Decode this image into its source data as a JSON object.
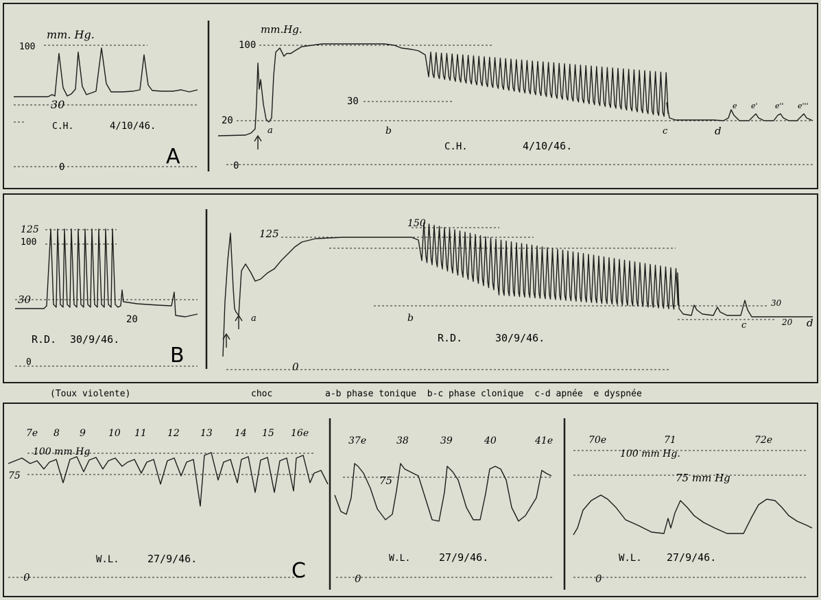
{
  "chart_data": [
    {
      "type": "line",
      "panel": "A",
      "subpanel": "left",
      "unit_label": "mm. Hg.",
      "ref_levels": [
        100,
        30
      ],
      "ref_labels": [
        "100",
        "30",
        "0"
      ],
      "caption": "C.H.",
      "date": "4/10/46.",
      "panel_letter": "A",
      "series": [
        {
          "x": [
            0,
            1,
            2,
            3,
            4,
            5,
            6,
            7,
            8
          ],
          "values": [
            30,
            30,
            85,
            30,
            85,
            30,
            85,
            30,
            30
          ]
        }
      ]
    },
    {
      "type": "line",
      "panel": "A",
      "subpanel": "right",
      "unit_label": "mm.Hg.",
      "ref_levels": [
        100,
        30,
        20
      ],
      "ref_labels": [
        "100",
        "30",
        "20",
        "0"
      ],
      "point_labels": [
        "a",
        "b",
        "c",
        "d",
        "e",
        "e'",
        "e''",
        "e'''"
      ],
      "caption": "C.H.",
      "date": "4/10/46."
    },
    {
      "type": "line",
      "panel": "B",
      "subpanel": "left",
      "ref_levels": [
        125,
        100,
        30,
        20
      ],
      "ref_labels": [
        "125",
        "100",
        "30",
        "20",
        "0"
      ],
      "caption": "R.D.",
      "date": "30/9/46.",
      "panel_letter": "B"
    },
    {
      "type": "line",
      "panel": "B",
      "subpanel": "right",
      "ref_levels": [
        150,
        125,
        30,
        20
      ],
      "ref_labels": [
        "150",
        "125",
        "30",
        "20",
        "0"
      ],
      "point_labels": [
        "a",
        "b",
        "c",
        "d"
      ],
      "caption": "R.D.",
      "date": "30/9/46."
    },
    {
      "type": "line",
      "panel": "C",
      "subpanel": "1",
      "beat_labels": [
        "7e",
        "8",
        "9",
        "10",
        "11",
        "12",
        "13",
        "14",
        "15",
        "16e"
      ],
      "ref_labels": [
        "100 mm Hg",
        "75",
        "0"
      ],
      "caption": "W.L.",
      "date": "27/9/46.",
      "panel_letter": "C"
    },
    {
      "type": "line",
      "panel": "C",
      "subpanel": "2",
      "beat_labels": [
        "37e",
        "38",
        "39",
        "40",
        "41e"
      ],
      "ref_labels": [
        "75",
        "0"
      ],
      "caption": "W.L.",
      "date": "27/9/46."
    },
    {
      "type": "line",
      "panel": "C",
      "subpanel": "3",
      "beat_labels": [
        "70e",
        "71",
        "72e"
      ],
      "ref_labels": [
        "100 mm Hg.",
        "75 mm Hg",
        "0"
      ],
      "caption": "W.L.",
      "date": "27/9/46."
    }
  ],
  "legend_line": {
    "toux": "(Toux violente)",
    "choc": "choc",
    "phases": "a-b phase tonique  b-c phase clonique  c-d apnée  e dyspnée"
  },
  "colors": {
    "paper": "#dcdfd2",
    "ink": "#1d1d1b"
  }
}
